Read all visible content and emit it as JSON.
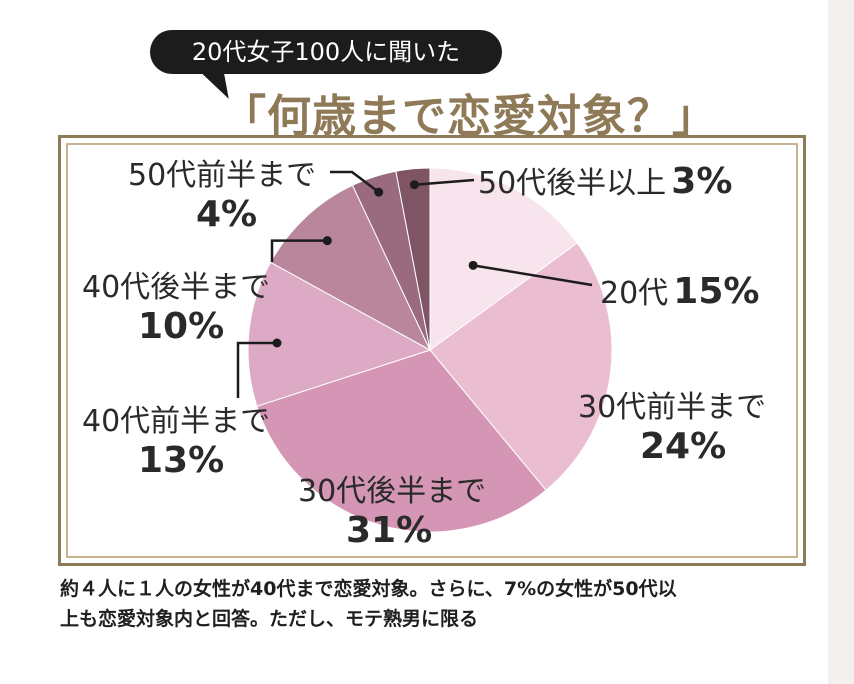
{
  "header": {
    "subtitle": "20代女子100人に聞いた",
    "title": "「何歳まで恋愛対象？」"
  },
  "chart_data": {
    "type": "pie",
    "title": "「何歳まで恋愛対象？」",
    "subtitle": "20代女子100人に聞いた",
    "slices": [
      {
        "label": "20代",
        "value": 15,
        "display": "15%",
        "color": "#f8e4ec"
      },
      {
        "label": "30代前半まで",
        "value": 24,
        "display": "24%",
        "color": "#ebbdd1"
      },
      {
        "label": "30代後半まで",
        "value": 31,
        "display": "31%",
        "color": "#d496b4"
      },
      {
        "label": "40代前半まで",
        "value": 13,
        "display": "13%",
        "color": "#dcaac4"
      },
      {
        "label": "40代後半まで",
        "value": 10,
        "display": "10%",
        "color": "#b9869c"
      },
      {
        "label": "50代前半まで",
        "value": 4,
        "display": "4%",
        "color": "#9a6a7e"
      },
      {
        "label": "50代後半以上",
        "value": 3,
        "display": "3%",
        "color": "#7f5465"
      }
    ]
  },
  "footnote": {
    "line1": "約４人に１人の女性が40代まで恋愛対象。さらに、7%の女性が50代以",
    "line2": "上も恋愛対象内と回答。ただし、モテ熟男に限る"
  },
  "colors": {
    "frame": "#8f7a58",
    "bubble": "#1c1c1c",
    "leader": "#1c1c1c"
  }
}
